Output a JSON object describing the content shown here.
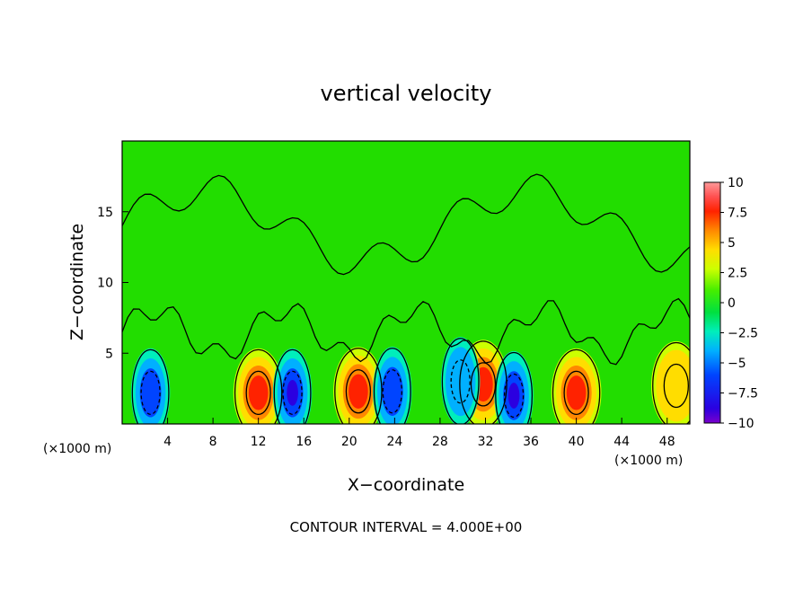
{
  "chart_data": {
    "type": "heatmap",
    "title": "vertical velocity",
    "xlabel": "X−coordinate",
    "ylabel": "Z−coordinate",
    "x_unit_left": "(×1000 m)",
    "x_unit_right": "(×1000 m)",
    "footer": "CONTOUR INTERVAL = 4.000E+00",
    "xlim": [
      0,
      50
    ],
    "ylim": [
      0,
      20
    ],
    "x_ticks": [
      4,
      8,
      12,
      16,
      20,
      24,
      28,
      32,
      36,
      40,
      44,
      48
    ],
    "x_tick_labels": [
      "4",
      "8",
      "12",
      "16",
      "20",
      "24",
      "28",
      "32",
      "36",
      "40",
      "44",
      "48"
    ],
    "y_ticks": [
      5,
      10,
      15
    ],
    "y_tick_labels": [
      "5",
      "10",
      "15"
    ],
    "colorbar": {
      "min": -10,
      "max": 10,
      "tick_labels": [
        "10",
        "7.5",
        "5",
        "2.5",
        "0",
        "−2.5",
        "−5",
        "−7.5",
        "−10"
      ],
      "tick_values": [
        10,
        7.5,
        5,
        2.5,
        0,
        -2.5,
        -5,
        -7.5,
        -10
      ]
    },
    "contour_interval": 4,
    "updraft_cores": [
      {
        "x": 12.0,
        "z": 2.2,
        "w": 8.0
      },
      {
        "x": 20.8,
        "z": 2.3,
        "w": 8.5
      },
      {
        "x": 31.8,
        "z": 2.8,
        "w": 9.0
      },
      {
        "x": 40.0,
        "z": 2.2,
        "w": 8.5
      },
      {
        "x": 48.8,
        "z": 2.7,
        "w": 5.0
      }
    ],
    "downdraft_cores": [
      {
        "x": 2.5,
        "z": 2.2,
        "w": -7.0
      },
      {
        "x": 15.0,
        "z": 2.2,
        "w": -7.5
      },
      {
        "x": 23.8,
        "z": 2.3,
        "w": -6.0
      },
      {
        "x": 29.8,
        "z": 3.0,
        "w": -5.0
      },
      {
        "x": 34.5,
        "z": 2.0,
        "w": -7.5
      }
    ]
  }
}
